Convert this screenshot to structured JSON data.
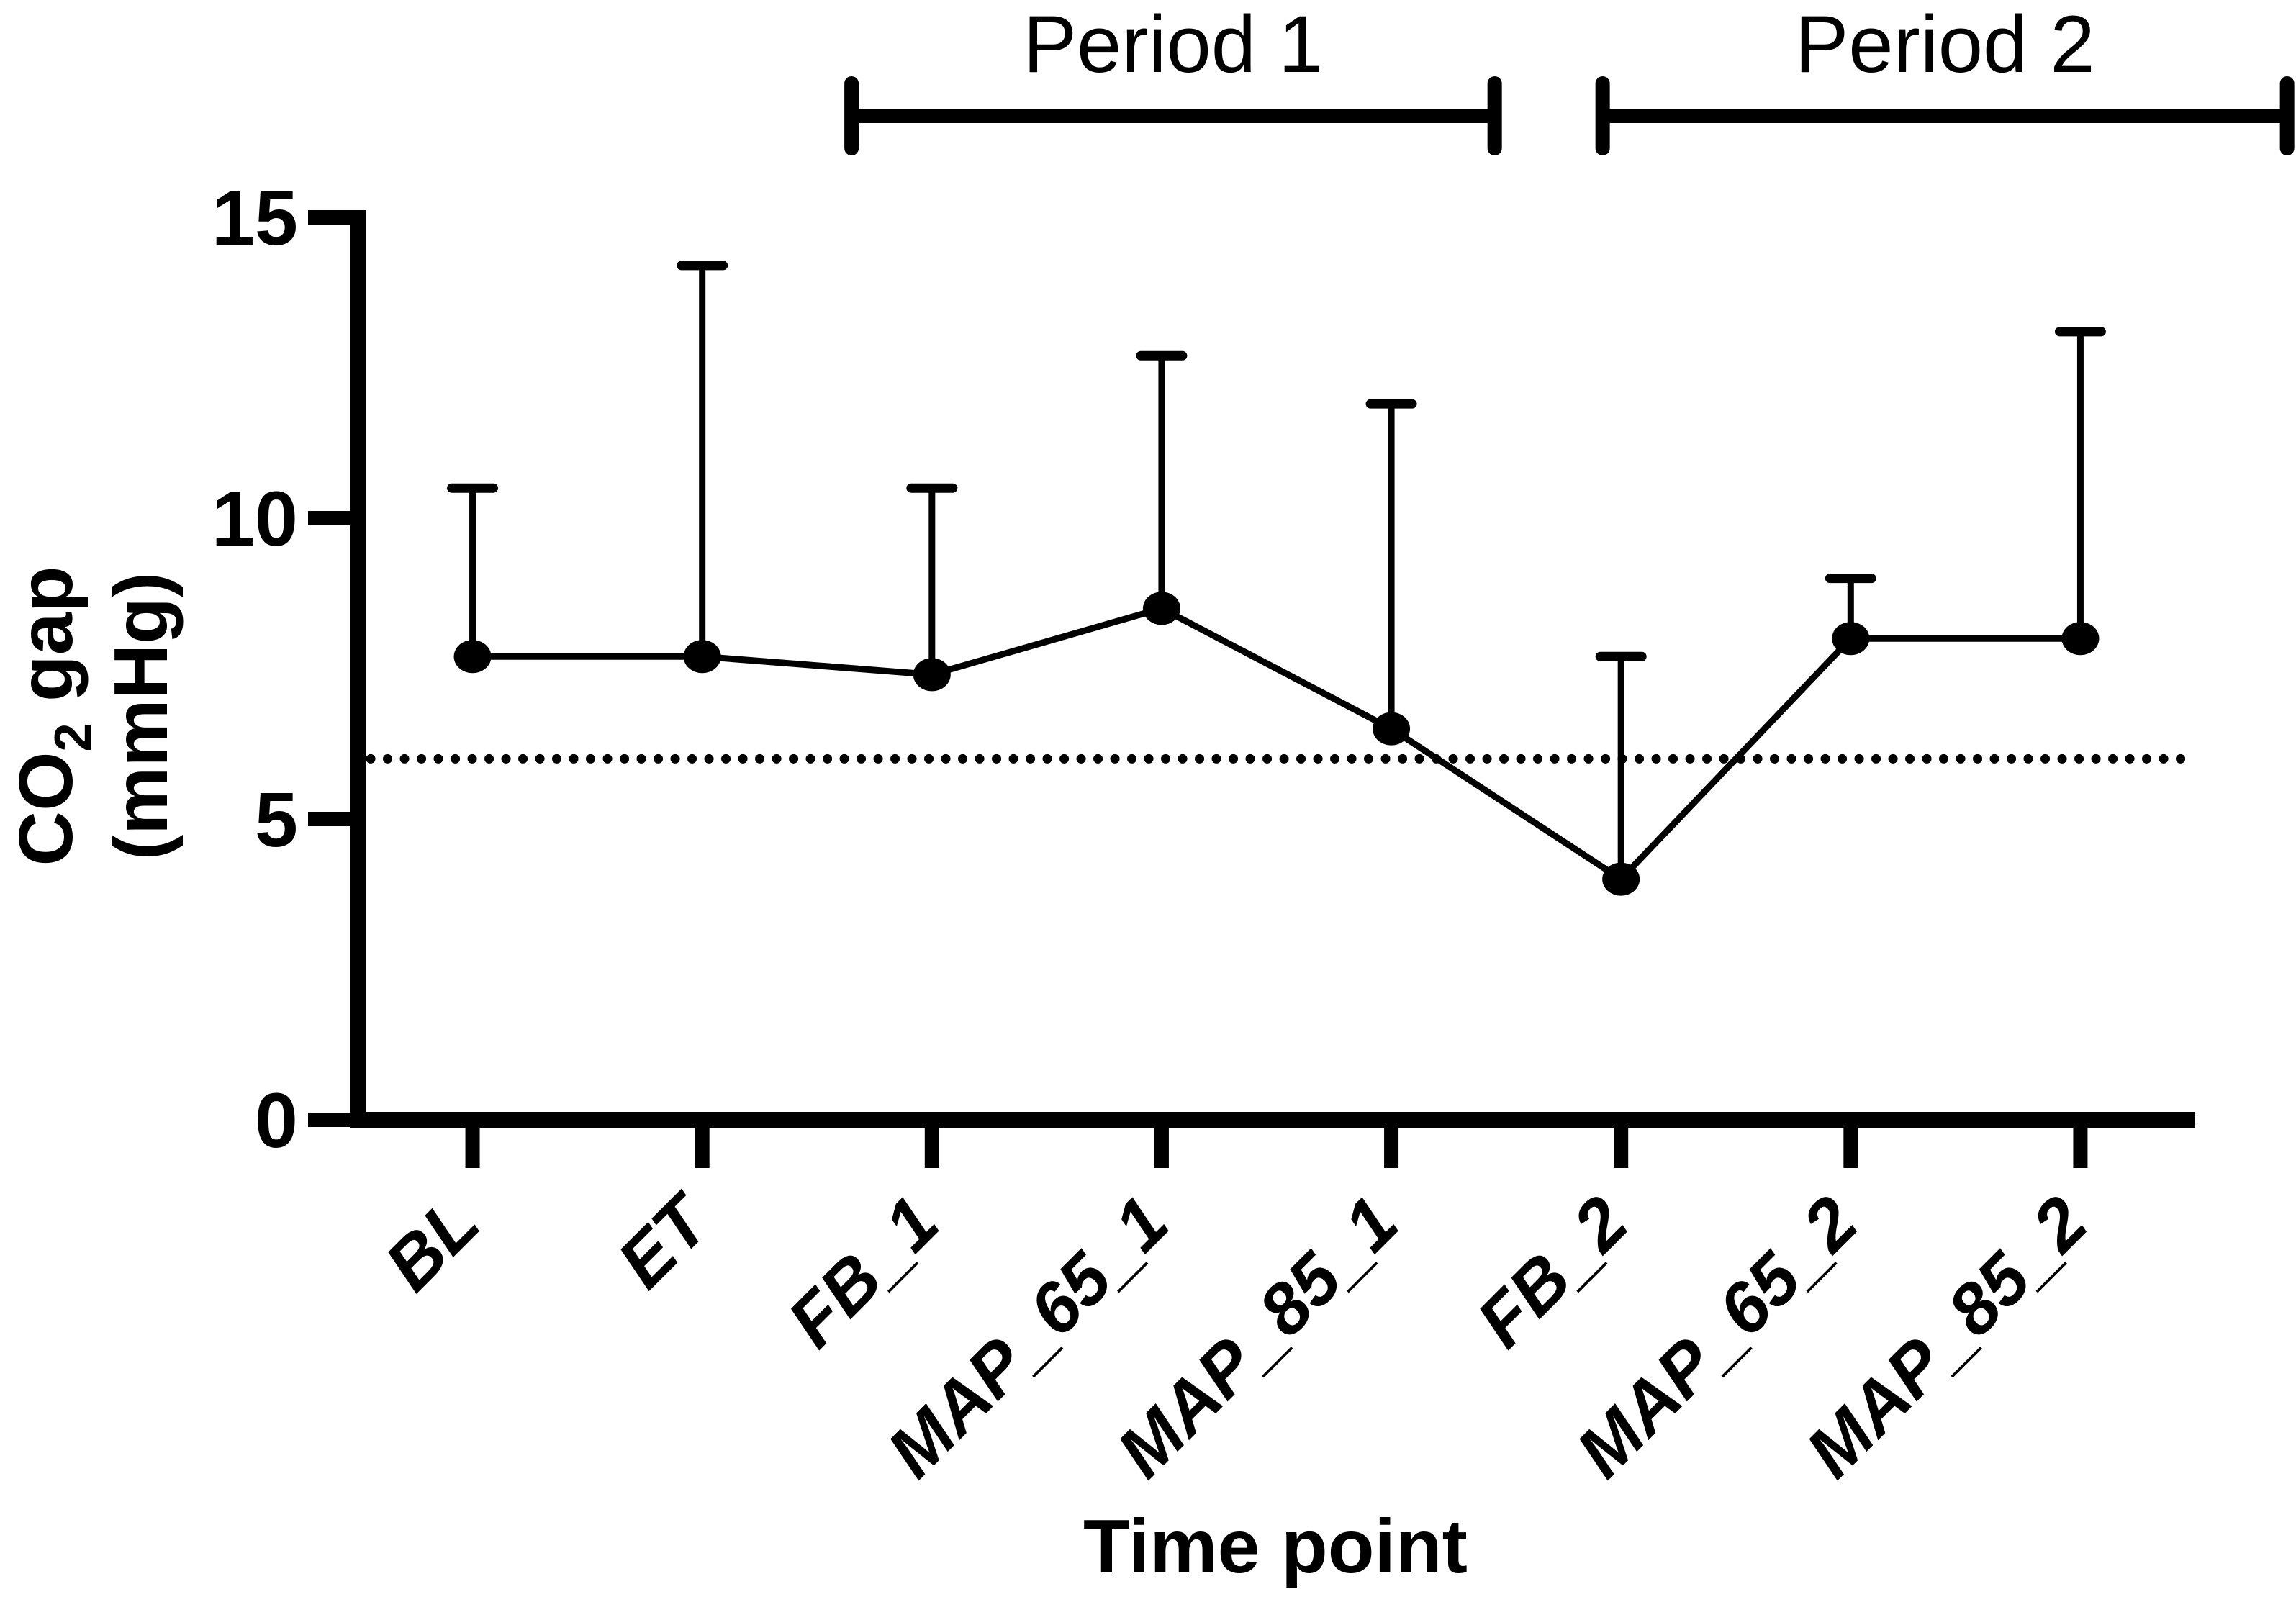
{
  "figure": {
    "background": "#ffffff",
    "foreground": "#000000"
  },
  "chart_data": {
    "type": "line",
    "title": "",
    "xlabel": "Time point",
    "ylabel": {
      "line1_main": "CO",
      "line1_sub": "2",
      "line1_rest": " gap",
      "line2": "(mmHg)",
      "full_text": "CO2 gap (mmHg)"
    },
    "categories": [
      "BL",
      "ET",
      "FB_1",
      "MAP_65_1",
      "MAP_85_1",
      "FB_2",
      "MAP_65_2",
      "MAP_85_2"
    ],
    "series": [
      {
        "name": "CO2 gap",
        "values": [
          7.7,
          7.7,
          7.4,
          8.5,
          6.5,
          4.0,
          8.0,
          8.0
        ],
        "error_upper": [
          2.8,
          6.5,
          3.1,
          4.2,
          5.4,
          3.7,
          1.0,
          5.1
        ],
        "error_bar_tops": [
          10.5,
          14.2,
          10.5,
          12.7,
          11.9,
          7.7,
          9.0,
          13.1
        ],
        "color": "#000000",
        "marker": "filled-circle"
      }
    ],
    "ylim": [
      0,
      15
    ],
    "yticks": [
      0,
      5,
      10,
      15
    ],
    "reference_line": {
      "y": 6,
      "style": "dotted",
      "color": "#000000"
    },
    "grid": false,
    "legend": null,
    "error_bars": "upper-only",
    "annotations": [
      {
        "label": "Period 1",
        "x_start": 1.65,
        "x_end": 4.45
      },
      {
        "label": "Period 2",
        "x_start": 4.92,
        "x_end": 7.9
      }
    ]
  }
}
